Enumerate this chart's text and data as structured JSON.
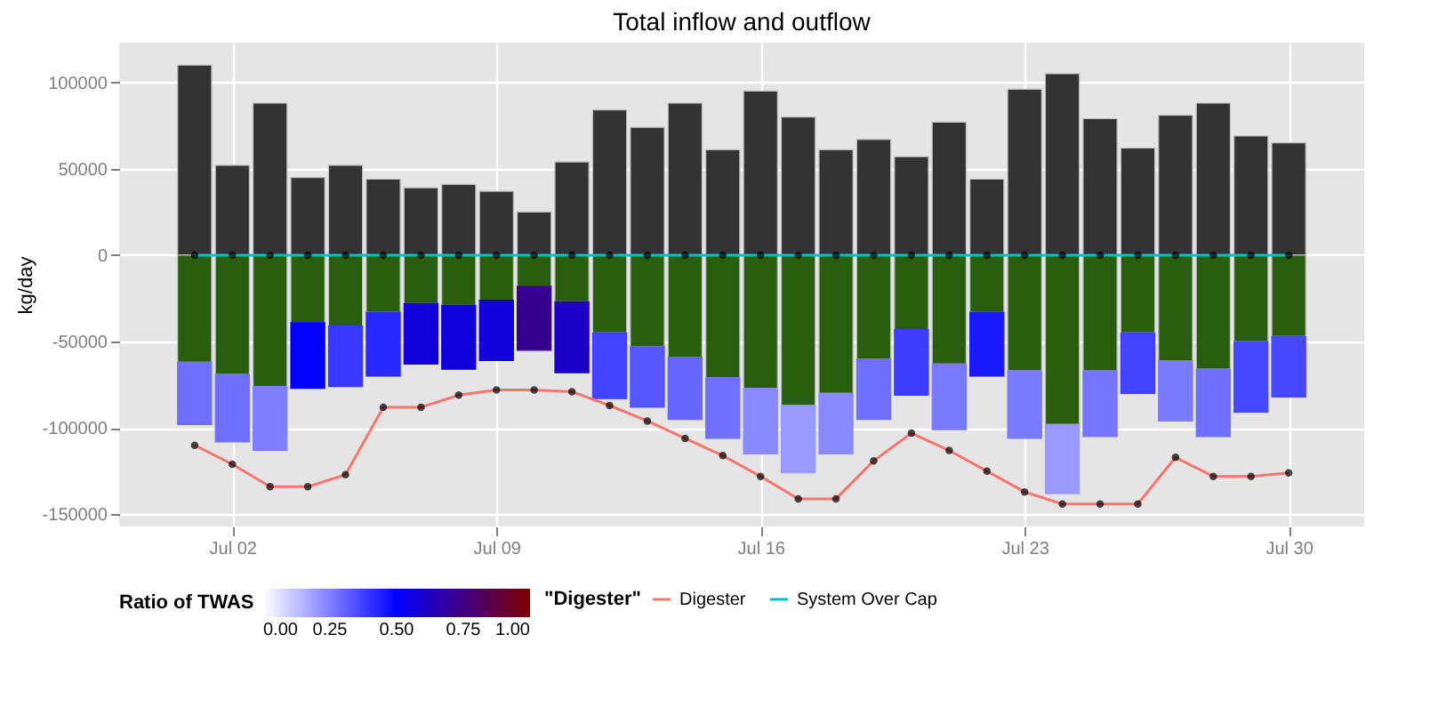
{
  "chart_data": {
    "type": "bar",
    "title": "Total inflow and outflow",
    "ylabel": "kg/day",
    "clabel": "Ratio of TWAS",
    "legend_title": "\"Digester\"",
    "x": [
      "--07-01",
      "--07-02",
      "--07-03",
      "--07-04",
      "--07-05",
      "--07-06",
      "--07-07",
      "--07-08",
      "--07-09",
      "--07-10",
      "--07-11",
      "--07-12",
      "--07-13",
      "--07-14",
      "--07-15",
      "--07-16",
      "--07-17",
      "--07-18",
      "--07-19",
      "--07-20",
      "--07-21",
      "--07-22",
      "--07-23",
      "--07-24",
      "--07-25",
      "--07-26",
      "--07-27",
      "--07-28",
      "--07-29",
      "--07-30"
    ],
    "xlim": [
      "--06-29",
      "--08-01"
    ],
    "xticks": [
      {
        "value": "--07-02",
        "label": "Jul 02"
      },
      {
        "value": "--07-09",
        "label": "Jul 09"
      },
      {
        "value": "--07-16",
        "label": "Jul 16"
      },
      {
        "value": "--07-23",
        "label": "Jul 23"
      },
      {
        "value": "--07-30",
        "label": "Jul 30"
      }
    ],
    "ylim": [
      -157000,
      123000
    ],
    "yticks": [
      -150000,
      -100000,
      -50000,
      0,
      50000,
      100000
    ],
    "clim": [
      0,
      1
    ],
    "cticks": [
      {
        "value": 0,
        "label": "0.00"
      },
      {
        "value": 0.25,
        "label": "0.25"
      },
      {
        "value": 0.5,
        "label": "0.50"
      },
      {
        "value": 0.75,
        "label": "0.75"
      },
      {
        "value": 1,
        "label": "1.00"
      }
    ],
    "stacked": true,
    "grid": true,
    "legend": "bottom",
    "marker": "circle",
    "line_style": "solid",
    "series": [
      {
        "color": "#333333",
        "values": [
          110000,
          52000,
          88000,
          45000,
          52000,
          44000,
          39000,
          41000,
          37000,
          25000,
          54000,
          84000,
          74000,
          88000,
          61000,
          95000,
          80000,
          61000,
          67000,
          57000,
          77000,
          44000,
          96000,
          105000,
          79000,
          62000,
          81000,
          88000,
          69000,
          65000
        ]
      },
      {
        "color": "#2a5e0f",
        "values": [
          -62000,
          -69000,
          -76000,
          -39000,
          -41000,
          -33000,
          -28000,
          -29000,
          -26000,
          -18000,
          -27000,
          -45000,
          -53000,
          -59000,
          -71000,
          -77000,
          -87000,
          -80000,
          -60000,
          -43000,
          -63000,
          -33000,
          -67000,
          -98000,
          -67000,
          -45000,
          -61000,
          -66000,
          -50000,
          -47000
        ]
      },
      {
        "values": [
          -36000,
          -39000,
          -37000,
          -38000,
          -35000,
          -37000,
          -35000,
          -37000,
          -35000,
          -37000,
          -41000,
          -38000,
          -35000,
          -36000,
          -35000,
          -38000,
          -39000,
          -35000,
          -35000,
          -38000,
          -38000,
          -37000,
          -39000,
          -40000,
          -38000,
          -35000,
          -35000,
          -39000,
          -41000,
          -35000
        ],
        "colors": [
          "#7070ff",
          "#7070ff",
          "#8080ff",
          "#0000ff",
          "#3838ff",
          "#2929ff",
          "#1200db",
          "#1200db",
          "#1200db",
          "#38008f",
          "#1c00c7",
          "#4242ff",
          "#5757ff",
          "#6666ff",
          "#7070ff",
          "#8a8aff",
          "#9999ff",
          "#8a8aff",
          "#7070ff",
          "#3d3dff",
          "#7a7aff",
          "#1a1aff",
          "#7a7aff",
          "#9999ff",
          "#7575ff",
          "#4242ff",
          "#7a7aff",
          "#7070ff",
          "#4747ff",
          "#4747ff"
        ],
        "cvalues": [
          0.28,
          0.28,
          0.25,
          0.5,
          0.39,
          0.42,
          0.57,
          0.57,
          0.57,
          0.72,
          0.61,
          0.37,
          0.33,
          0.3,
          0.28,
          0.23,
          0.2,
          0.23,
          0.28,
          0.38,
          0.26,
          0.45,
          0.26,
          0.2,
          0.27,
          0.37,
          0.26,
          0.28,
          0.36,
          0.36
        ]
      },
      {
        "type": "line",
        "name": "Digester",
        "color": "#f8766d",
        "values": [
          -110000,
          -121000,
          -134000,
          -134000,
          -127000,
          -88000,
          -88000,
          -81000,
          -78000,
          -78000,
          -79000,
          -87000,
          -96000,
          -106000,
          -116000,
          -128000,
          -141000,
          -141000,
          -119000,
          -103000,
          -113000,
          -125000,
          -137000,
          -144000,
          -144000,
          -144000,
          -117000,
          -128000,
          -128000,
          -126000
        ]
      },
      {
        "type": "line",
        "name": "System Over Cap",
        "color": "#00bfc4",
        "values": [
          0,
          0,
          0,
          0,
          0,
          0,
          0,
          0,
          0,
          0,
          0,
          0,
          0,
          0,
          0,
          0,
          0,
          0,
          0,
          0,
          0,
          0,
          0,
          0,
          0,
          0,
          0,
          0,
          0,
          0
        ]
      }
    ]
  }
}
